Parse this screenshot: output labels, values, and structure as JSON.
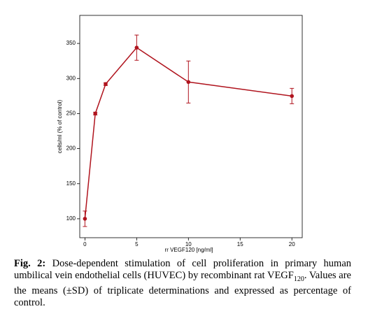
{
  "chart_data": {
    "type": "line",
    "x_label": "rr VEGF120 [ng/ml]",
    "y_label": "cells/ml (% of control)",
    "x": [
      0,
      1,
      2,
      5,
      10,
      20
    ],
    "values": [
      100,
      250,
      292,
      344,
      295,
      275
    ],
    "errors": [
      11,
      2,
      2,
      18,
      30,
      11
    ],
    "color": "#b0141e",
    "xlim": [
      -0.5,
      21
    ],
    "ylim": [
      73,
      390
    ],
    "xticks": [
      0,
      5,
      10,
      15,
      20
    ],
    "yticks": [
      100,
      150,
      200,
      250,
      300,
      350
    ]
  },
  "caption": {
    "label": "Fig. 2:",
    "text_before": "Dose-dependent stimulation of cell proliferation in primary human umbilical vein endothelial cells (HUVEC) by recombinant rat VEGF",
    "subscript": "120",
    "text_after": ". Values are the means (±SD) of triplicate determinations and expressed as percentage of control."
  }
}
